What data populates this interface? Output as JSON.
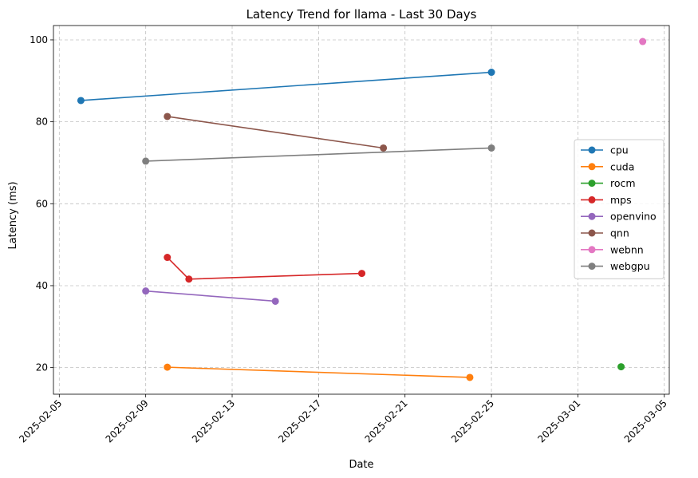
{
  "chart_data": {
    "type": "line",
    "title": "Latency Trend for llama - Last 30 Days",
    "xlabel": "Date",
    "ylabel": "Latency (ms)",
    "x_axis": {
      "kind": "date",
      "range": [
        "2025-02-05",
        "2025-03-05"
      ],
      "ticks": [
        "2025-02-05",
        "2025-02-09",
        "2025-02-13",
        "2025-02-17",
        "2025-02-21",
        "2025-02-25",
        "2025-03-01",
        "2025-03-05"
      ]
    },
    "y_axis": {
      "range": [
        13.5,
        103.5
      ],
      "ticks": [
        20,
        40,
        60,
        80,
        100
      ]
    },
    "grid": true,
    "legend_position": "center-right",
    "series": [
      {
        "name": "cpu",
        "color": "#1f77b4",
        "points": [
          [
            "2025-02-06",
            85.2
          ],
          [
            "2025-02-25",
            92.1
          ]
        ]
      },
      {
        "name": "cuda",
        "color": "#ff7f0e",
        "points": [
          [
            "2025-02-10",
            20.1
          ],
          [
            "2025-02-24",
            17.6
          ]
        ]
      },
      {
        "name": "rocm",
        "color": "#2ca02c",
        "points": [
          [
            "2025-03-03",
            20.2
          ]
        ]
      },
      {
        "name": "mps",
        "color": "#d62728",
        "points": [
          [
            "2025-02-10",
            46.9
          ],
          [
            "2025-02-11",
            41.6
          ],
          [
            "2025-02-19",
            43.0
          ]
        ]
      },
      {
        "name": "openvino",
        "color": "#9467bd",
        "points": [
          [
            "2025-02-09",
            38.7
          ],
          [
            "2025-02-15",
            36.2
          ]
        ]
      },
      {
        "name": "qnn",
        "color": "#8c564b",
        "points": [
          [
            "2025-02-10",
            81.3
          ],
          [
            "2025-02-20",
            73.6
          ]
        ]
      },
      {
        "name": "webnn",
        "color": "#e377c2",
        "points": [
          [
            "2025-03-04",
            99.6
          ]
        ]
      },
      {
        "name": "webgpu",
        "color": "#7f7f7f",
        "points": [
          [
            "2025-02-09",
            70.4
          ],
          [
            "2025-02-25",
            73.6
          ]
        ]
      }
    ]
  }
}
